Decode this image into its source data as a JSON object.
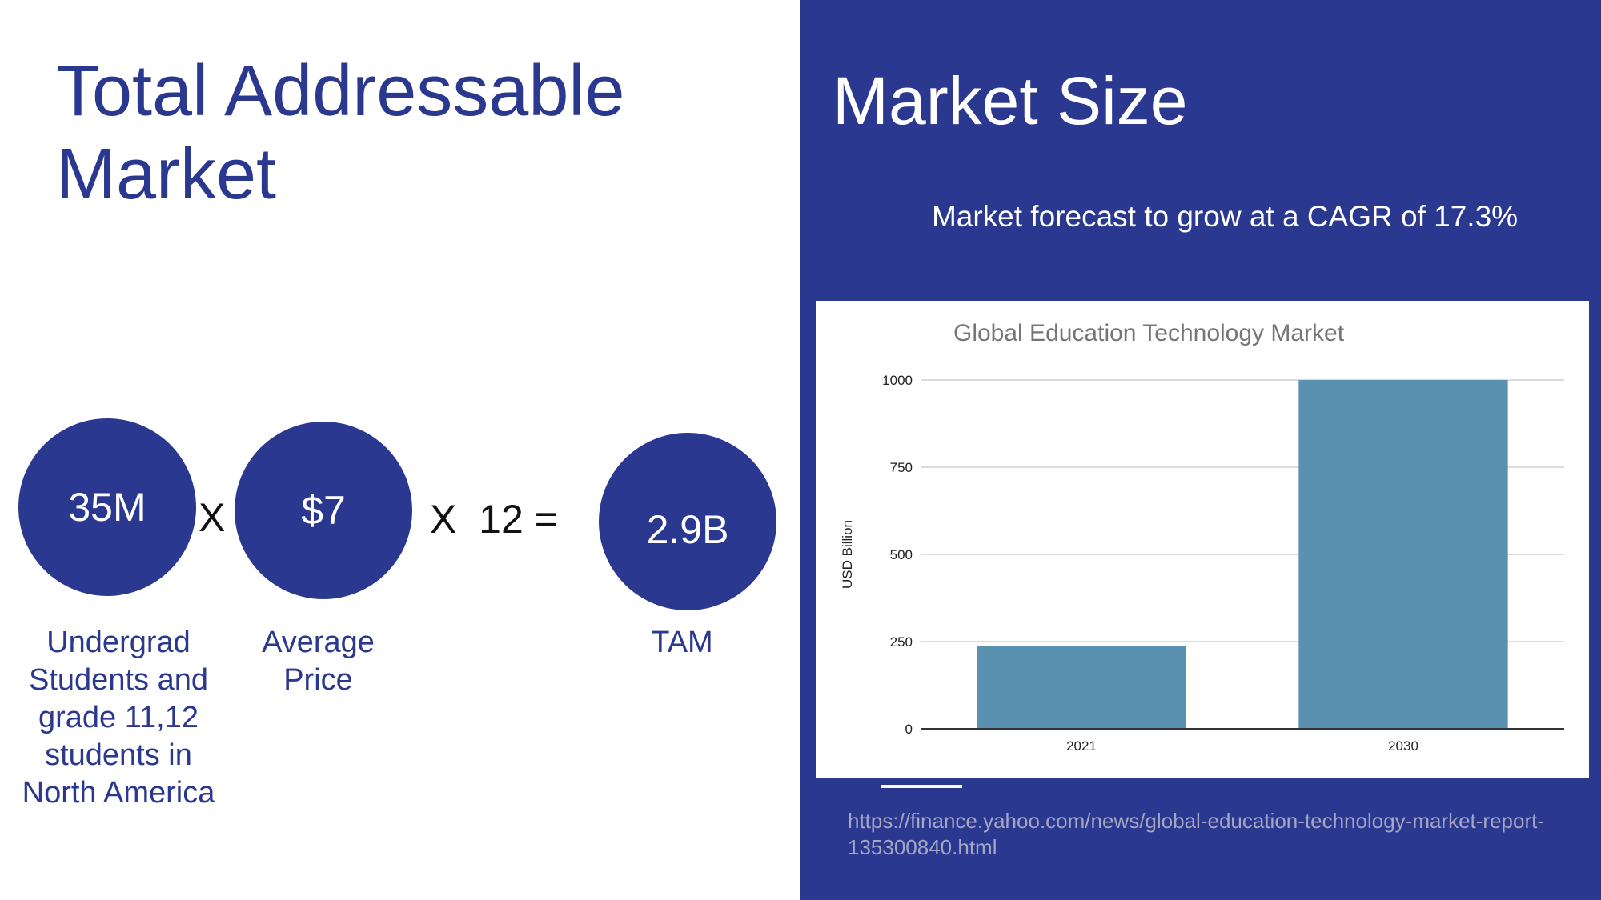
{
  "left": {
    "title": "Total Addressable Market",
    "circles": [
      {
        "value": "35M",
        "caption": [
          "Undergrad",
          "Students and",
          "grade 11,12",
          "students in",
          "North America"
        ]
      },
      {
        "value": "$7",
        "caption": [
          "Average",
          "Price"
        ]
      },
      {
        "value": "2.9B",
        "caption": [
          "TAM"
        ]
      }
    ],
    "operators": [
      "X",
      "X  12 ="
    ]
  },
  "right": {
    "title": "Market Size",
    "subtitle": "Market forecast to grow at a CAGR of 17.3%",
    "source": "https://finance.yahoo.com/news/global-education-technology-market-report-135300840.html"
  },
  "colors": {
    "brand": "#2b3890",
    "bar": "#5a90b0",
    "link": "#a4a6c4"
  },
  "chart_data": {
    "type": "bar",
    "title": "Global Education Technology Market",
    "categories": [
      "2021",
      "2030"
    ],
    "values": [
      237,
      1000
    ],
    "xlabel": "",
    "ylabel": "USD Billion",
    "ylim": [
      0,
      1000
    ],
    "yticks": [
      0,
      250,
      500,
      750,
      1000
    ],
    "grid": true,
    "legend": "none"
  }
}
